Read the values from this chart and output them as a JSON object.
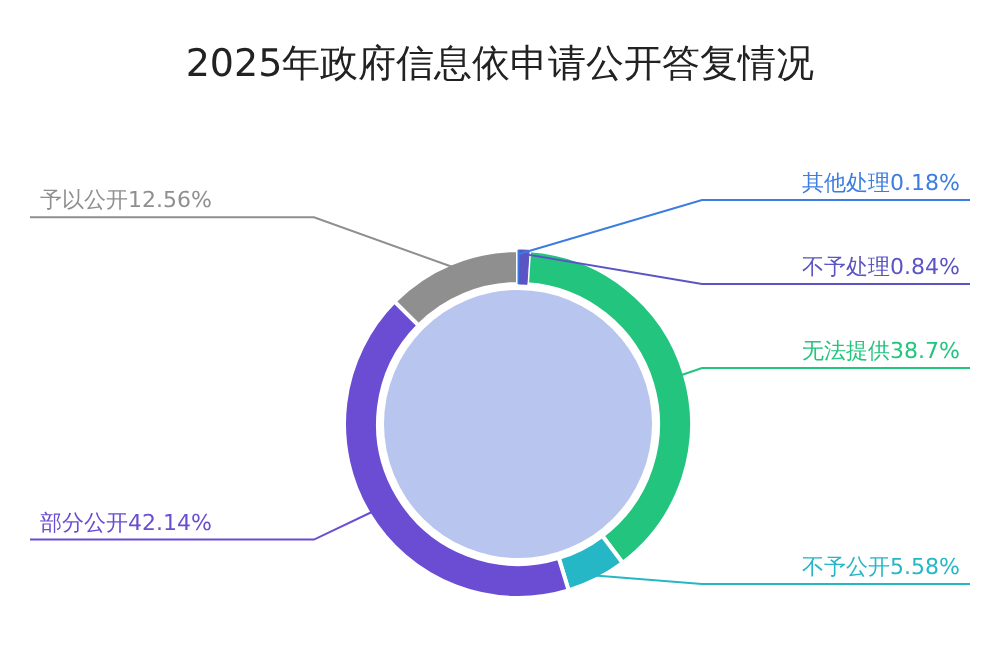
{
  "chart_data": {
    "type": "donut",
    "title": "2025年政府信息依申请公开答复情况",
    "categories": [
      "其他处理",
      "不予处理",
      "无法提供",
      "不予公开",
      "部分公开",
      "予以公开"
    ],
    "values": [
      0.18,
      0.84,
      38.7,
      5.58,
      42.14,
      12.56
    ],
    "value_labels": [
      "0.18%",
      "0.84%",
      "38.7%",
      "5.58%",
      "42.14%",
      "12.56%"
    ],
    "colors": [
      "#3b7de0",
      "#5b54c4",
      "#22c47e",
      "#26b7c6",
      "#6a4dd2",
      "#8f8f8f"
    ]
  }
}
